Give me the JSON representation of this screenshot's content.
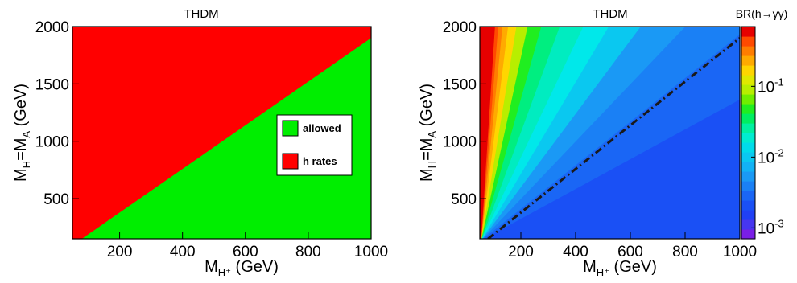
{
  "chart_data": [
    {
      "type": "area",
      "title": "THDM",
      "xlabel": "M",
      "xlabel_sub": "H⁺",
      "xlabel_unit": " (GeV)",
      "ylabel_main": "M",
      "ylabel_sub1": "H",
      "ylabel_mid": "=M",
      "ylabel_sub2": "A",
      "ylabel_unit": " (GeV)",
      "xlim": [
        50,
        1000
      ],
      "ylim": [
        150,
        2000
      ],
      "xticks": [
        200,
        400,
        600,
        800,
        1000
      ],
      "yticks": [
        500,
        1000,
        1500,
        2000
      ],
      "boundary": {
        "x": [
          80,
          1000
        ],
        "y": [
          150,
          1900
        ]
      },
      "regions": [
        {
          "name": "allowed",
          "color": "#00ee00",
          "side": "below"
        },
        {
          "name": "h rates",
          "color": "#ff0000",
          "side": "above"
        }
      ],
      "legend": {
        "position": "right",
        "entries": [
          "allowed",
          "h rates"
        ]
      }
    },
    {
      "type": "heatmap",
      "title": "THDM",
      "xlabel": "M",
      "xlabel_sub": "H⁺",
      "xlabel_unit": " (GeV)",
      "ylabel_main": "M",
      "ylabel_sub1": "H",
      "ylabel_mid": "=M",
      "ylabel_sub2": "A",
      "ylabel_unit": " (GeV)",
      "xlim": [
        50,
        1000
      ],
      "ylim": [
        150,
        2000
      ],
      "xticks": [
        200,
        400,
        600,
        800,
        1000
      ],
      "yticks": [
        500,
        1000,
        1500,
        2000
      ],
      "colorbar": {
        "title": "BR(h→γγ)",
        "scale": "log",
        "range": [
          0.0007,
          0.7
        ],
        "tick_values": [
          0.001,
          0.01,
          0.1
        ],
        "tick_labels": [
          {
            "base": "10",
            "exp": "-3"
          },
          {
            "base": "10",
            "exp": "-2"
          },
          {
            "base": "10",
            "exp": "-1"
          }
        ],
        "colors": [
          "#7a1ee6",
          "#4636f0",
          "#2040f5",
          "#1a50f5",
          "#1a66f5",
          "#1a80f5",
          "#1a99f5",
          "#12b2f5",
          "#0ac8f0",
          "#00dcea",
          "#00ecd0",
          "#00f0a0",
          "#00ee60",
          "#20ee20",
          "#70ee00",
          "#b8ee00",
          "#e0e800",
          "#ffd500",
          "#ffaa00",
          "#ff7d00",
          "#ff4a00",
          "#e60000"
        ]
      },
      "bands": {
        "slopes": [
          1.3,
          1.9,
          2.5,
          3.2,
          4.0,
          5.0,
          6.5,
          8.5,
          11,
          14.5,
          19,
          24,
          30,
          37
        ],
        "colors": [
          "#1a50f5",
          "#1a66f5",
          "#1a80f5",
          "#1a99f5",
          "#0ac8f0",
          "#00e8ea",
          "#00ecc0",
          "#00ee80",
          "#20ee20",
          "#b8ee00",
          "#ffd500",
          "#ffaa00",
          "#ff7d00",
          "#ff4a00",
          "#e60000"
        ]
      },
      "dashed_line": {
        "x": [
          80,
          1000
        ],
        "y": [
          150,
          1900
        ]
      }
    }
  ]
}
